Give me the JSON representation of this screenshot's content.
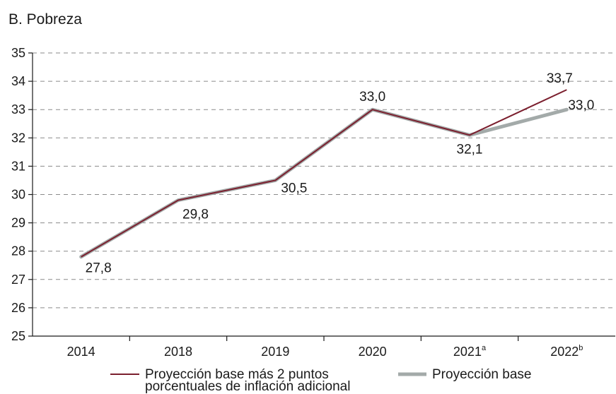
{
  "chart_data": {
    "type": "line",
    "title": "B. Pobreza",
    "categories": [
      {
        "label": "2014",
        "sup": ""
      },
      {
        "label": "2018",
        "sup": ""
      },
      {
        "label": "2019",
        "sup": ""
      },
      {
        "label": "2020",
        "sup": ""
      },
      {
        "label": "2021",
        "sup": "a"
      },
      {
        "label": "2022",
        "sup": "b"
      }
    ],
    "ylim": [
      25,
      35
    ],
    "yticks": [
      "25",
      "26",
      "27",
      "28",
      "29",
      "30",
      "31",
      "32",
      "33",
      "34",
      "35"
    ],
    "grid": "horizontal-dashed",
    "series": [
      {
        "name": "Proyección base más 2 puntos porcentuales de inflación adicional",
        "name_lines": [
          "Proyección base más 2 puntos",
          "porcentuales de inflación adicional"
        ],
        "color": "#7b1f2e",
        "values": [
          27.8,
          29.8,
          30.5,
          33.0,
          32.1,
          33.7
        ]
      },
      {
        "name": "Proyección base",
        "name_lines": [
          "Proyección base"
        ],
        "color": "#a3aaa9",
        "values": [
          27.8,
          29.8,
          30.5,
          33.0,
          32.1,
          33.0
        ]
      }
    ],
    "data_labels": [
      "27,8",
      "29,8",
      "30,5",
      "33,0",
      "32,1",
      "33,7",
      "33,0"
    ],
    "legend_position": "bottom"
  }
}
